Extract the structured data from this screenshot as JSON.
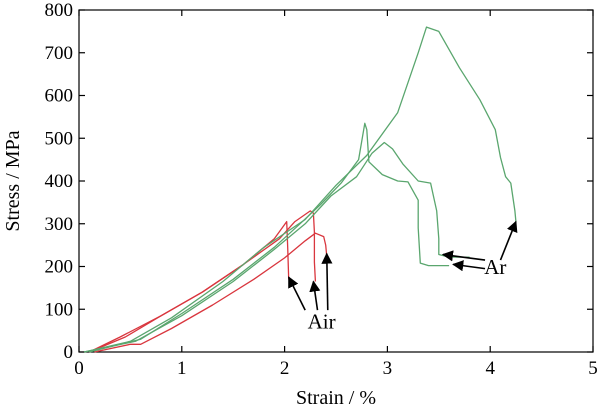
{
  "chart_data": {
    "type": "line",
    "xlabel": "Strain / %",
    "ylabel": "Stress / MPa",
    "xlim": [
      0,
      5
    ],
    "ylim": [
      0,
      800
    ],
    "xticks": [
      0,
      1,
      2,
      3,
      4,
      5
    ],
    "yticks": [
      0,
      100,
      200,
      300,
      400,
      500,
      600,
      700,
      800
    ],
    "grid": false,
    "colors": {
      "air": "#d9363e",
      "ar": "#5aa66e"
    },
    "series": [
      {
        "group": "air",
        "color": "#d9363e",
        "points": [
          [
            0.1,
            0
          ],
          [
            0.4,
            35
          ],
          [
            0.8,
            85
          ],
          [
            1.2,
            140
          ],
          [
            1.6,
            205
          ],
          [
            1.9,
            265
          ],
          [
            2.02,
            305
          ],
          [
            2.03,
            245
          ],
          [
            2.04,
            170
          ]
        ]
      },
      {
        "group": "air",
        "color": "#d9363e",
        "points": [
          [
            0.15,
            0
          ],
          [
            0.5,
            18
          ],
          [
            0.6,
            18
          ],
          [
            0.9,
            55
          ],
          [
            1.3,
            110
          ],
          [
            1.7,
            170
          ],
          [
            2.0,
            220
          ],
          [
            2.2,
            260
          ],
          [
            2.3,
            278
          ],
          [
            2.38,
            270
          ],
          [
            2.4,
            250
          ],
          [
            2.41,
            225
          ]
        ]
      },
      {
        "group": "air",
        "color": "#d9363e",
        "points": [
          [
            0.1,
            0
          ],
          [
            0.45,
            35
          ],
          [
            0.8,
            85
          ],
          [
            1.2,
            140
          ],
          [
            1.6,
            205
          ],
          [
            1.95,
            265
          ],
          [
            2.1,
            305
          ],
          [
            2.25,
            330
          ],
          [
            2.28,
            325
          ],
          [
            2.29,
            280
          ],
          [
            2.29,
            210
          ],
          [
            2.3,
            165
          ]
        ]
      },
      {
        "group": "ar",
        "color": "#5aa66e",
        "points": [
          [
            0.05,
            0
          ],
          [
            0.5,
            25
          ],
          [
            0.9,
            80
          ],
          [
            1.4,
            165
          ],
          [
            1.8,
            245
          ],
          [
            2.2,
            310
          ],
          [
            2.5,
            390
          ],
          [
            2.8,
            460
          ],
          [
            3.1,
            560
          ],
          [
            3.3,
            700
          ],
          [
            3.38,
            760
          ],
          [
            3.5,
            750
          ],
          [
            3.7,
            665
          ],
          [
            3.9,
            590
          ],
          [
            4.05,
            520
          ],
          [
            4.1,
            455
          ],
          [
            4.15,
            410
          ],
          [
            4.2,
            395
          ],
          [
            4.24,
            330
          ],
          [
            4.25,
            305
          ]
        ]
      },
      {
        "group": "ar",
        "color": "#5aa66e",
        "points": [
          [
            0.05,
            0
          ],
          [
            0.55,
            25
          ],
          [
            1.0,
            85
          ],
          [
            1.5,
            165
          ],
          [
            1.9,
            240
          ],
          [
            2.2,
            300
          ],
          [
            2.45,
            365
          ],
          [
            2.7,
            410
          ],
          [
            2.85,
            465
          ],
          [
            2.97,
            490
          ],
          [
            3.05,
            475
          ],
          [
            3.15,
            440
          ],
          [
            3.3,
            400
          ],
          [
            3.42,
            395
          ],
          [
            3.48,
            330
          ],
          [
            3.5,
            265
          ],
          [
            3.5,
            228
          ],
          [
            3.6,
            222
          ],
          [
            3.8,
            222
          ]
        ]
      },
      {
        "group": "ar",
        "color": "#5aa66e",
        "points": [
          [
            0.1,
            0
          ],
          [
            0.6,
            30
          ],
          [
            1.0,
            90
          ],
          [
            1.5,
            170
          ],
          [
            1.9,
            245
          ],
          [
            2.15,
            300
          ],
          [
            2.35,
            345
          ],
          [
            2.55,
            395
          ],
          [
            2.72,
            450
          ],
          [
            2.78,
            535
          ],
          [
            2.8,
            520
          ],
          [
            2.82,
            445
          ],
          [
            2.95,
            415
          ],
          [
            3.1,
            400
          ],
          [
            3.2,
            398
          ],
          [
            3.3,
            355
          ],
          [
            3.3,
            290
          ],
          [
            3.32,
            208
          ],
          [
            3.4,
            202
          ],
          [
            3.6,
            202
          ]
        ]
      }
    ],
    "annotations": [
      {
        "text": "Air",
        "x": 2.36,
        "y": 55
      },
      {
        "text": "Ar",
        "x": 4.05,
        "y": 183
      }
    ],
    "arrows": [
      {
        "from": [
          2.2,
          98
        ],
        "to": [
          2.04,
          175
        ]
      },
      {
        "from": [
          2.32,
          98
        ],
        "to": [
          2.28,
          165
        ]
      },
      {
        "from": [
          2.42,
          98
        ],
        "to": [
          2.41,
          230
        ]
      },
      {
        "from": [
          3.95,
          215
        ],
        "to": [
          3.54,
          228
        ]
      },
      {
        "from": [
          3.95,
          195
        ],
        "to": [
          3.64,
          205
        ]
      },
      {
        "from": [
          4.1,
          215
        ],
        "to": [
          4.25,
          305
        ]
      }
    ]
  }
}
